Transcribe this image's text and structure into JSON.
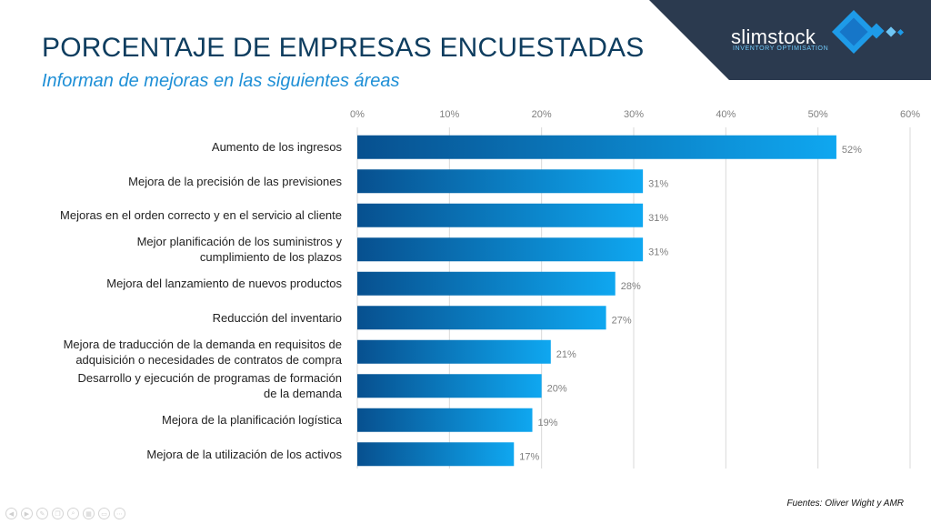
{
  "header": {
    "title": "PORCENTAJE DE EMPRESAS ENCUESTADAS",
    "subtitle": "Informan de mejoras en las siguientes áreas"
  },
  "brand": {
    "name": "slimstock",
    "tagline": "INVENTORY OPTIMISATION",
    "banner_color": "#2b3a4f",
    "accent_color": "#1e9be8"
  },
  "chart_data": {
    "type": "bar",
    "orientation": "horizontal",
    "categories": [
      "Aumento de los ingresos",
      "Mejora de la precisión de las previsiones",
      "Mejoras en el orden correcto y en el servicio al cliente",
      "Mejor planificación de los suministros y cumplimiento de los plazos",
      "Mejora del lanzamiento de nuevos productos",
      "Reducción del inventario",
      "Mejora de traducción de la demanda en requisitos de adquisición o necesidades de contratos de compra",
      "Desarrollo y ejecución de programas de formación de la demanda",
      "Mejora de la planificación logística",
      "Mejora de la utilización de los activos"
    ],
    "category_lines": [
      [
        "Aumento de los ingresos"
      ],
      [
        "Mejora de la precisión de las previsiones"
      ],
      [
        "Mejoras en el orden correcto y en el servicio al cliente"
      ],
      [
        "Mejor planificación de los suministros y",
        "cumplimiento de los plazos"
      ],
      [
        "Mejora del lanzamiento de nuevos productos"
      ],
      [
        "Reducción del inventario"
      ],
      [
        "Mejora de traducción de la demanda en requisitos de",
        "adquisición o necesidades de contratos de compra"
      ],
      [
        "Desarrollo y ejecución de programas de formación",
        "de la demanda"
      ],
      [
        "Mejora de la planificación logística"
      ],
      [
        "Mejora de la utilización de los activos"
      ]
    ],
    "values": [
      52,
      31,
      31,
      31,
      28,
      27,
      21,
      20,
      19,
      17
    ],
    "value_labels": [
      "52%",
      "31%",
      "31%",
      "31%",
      "28%",
      "27%",
      "21%",
      "20%",
      "19%",
      "17%"
    ],
    "xlim": [
      0,
      60
    ],
    "xticks": [
      0,
      10,
      20,
      30,
      40,
      50,
      60
    ],
    "xtick_labels": [
      "0%",
      "10%",
      "20%",
      "30%",
      "40%",
      "50%",
      "60%"
    ],
    "x_axis_position": "top",
    "grid": true,
    "bar_color_start": "#07508f",
    "bar_color_end": "#0fa7f0"
  },
  "footer": {
    "source": "Fuentes: Oliver Wight y AMR"
  }
}
